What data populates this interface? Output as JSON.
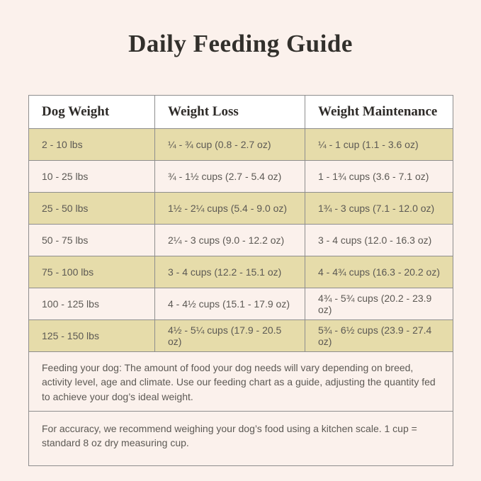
{
  "page": {
    "title": "Daily Feeding Guide"
  },
  "colors": {
    "background": "#fbf1ec",
    "row_tan": "#e6dcaa",
    "row_light": "#fbf1ec",
    "header_bg": "#ffffff",
    "border": "#8e8e8e",
    "title_text": "#32302c",
    "cell_text": "#5c5954"
  },
  "chart_data": {
    "type": "table",
    "title": "Daily Feeding Guide",
    "columns": [
      "Dog Weight",
      "Weight Loss",
      "Weight Maintenance"
    ],
    "rows": [
      [
        "2 - 10 lbs",
        "¼ - ¾ cup (0.8 - 2.7 oz)",
        "¼ - 1 cup (1.1 - 3.6 oz)"
      ],
      [
        "10 - 25 lbs",
        "¾ - 1½ cups (2.7 - 5.4 oz)",
        "1 - 1¾ cups (3.6 - 7.1 oz)"
      ],
      [
        "25 - 50 lbs",
        "1½ - 2¼ cups (5.4 - 9.0 oz)",
        "1¾ - 3 cups (7.1 - 12.0 oz)"
      ],
      [
        "50 - 75 lbs",
        "2¼ - 3 cups (9.0 - 12.2 oz)",
        "3 - 4 cups (12.0 - 16.3 oz)"
      ],
      [
        "75 - 100 lbs",
        "3 - 4 cups (12.2 - 15.1 oz)",
        "4 - 4¾ cups (16.3 - 20.2 oz)"
      ],
      [
        "100 - 125 lbs",
        "4 - 4½ cups (15.1 - 17.9 oz)",
        "4¾ - 5¾ cups (20.2 - 23.9 oz)"
      ],
      [
        "125 - 150 lbs",
        "4½ - 5¼ cups (17.9 - 20.5 oz)",
        "5¾ - 6½ cups (23.9 - 27.4 oz)"
      ]
    ],
    "notes": [
      "Feeding your dog: The amount of food your dog needs will vary depending on breed, activity level, age and climate. Use our feeding chart as a guide, adjusting the quantity fed to achieve your dog’s ideal weight.",
      "For accuracy, we recommend weighing your dog’s food using a kitchen scale. 1 cup = standard 8 oz dry measuring cup."
    ]
  }
}
